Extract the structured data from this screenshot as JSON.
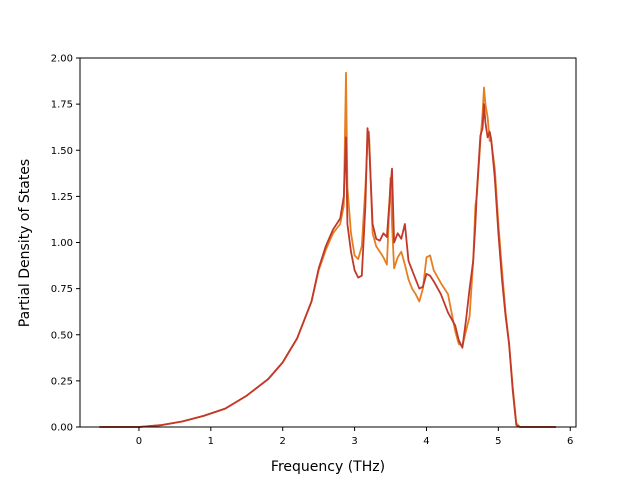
{
  "chart_data": {
    "type": "line",
    "title": "",
    "xlabel": "Frequency (THz)",
    "ylabel": "Partial Density of States",
    "xlim": [
      -0.82,
      6.08
    ],
    "ylim": [
      0.0,
      2.0
    ],
    "xticks": [
      0,
      1,
      2,
      3,
      4,
      5,
      6
    ],
    "yticks": [
      0.0,
      0.25,
      0.5,
      0.75,
      1.0,
      1.25,
      1.5,
      1.75,
      2.0
    ],
    "xtick_labels": [
      "0",
      "1",
      "2",
      "3",
      "4",
      "5",
      "6"
    ],
    "ytick_labels": [
      "0.00",
      "0.25",
      "0.50",
      "0.75",
      "1.00",
      "1.25",
      "1.50",
      "1.75",
      "2.00"
    ],
    "grid": false,
    "series": [
      {
        "color": "#e67e22",
        "x": [
          -0.55,
          0.0,
          0.3,
          0.6,
          0.9,
          1.2,
          1.5,
          1.8,
          2.0,
          2.2,
          2.4,
          2.5,
          2.6,
          2.7,
          2.8,
          2.85,
          2.88,
          2.9,
          2.95,
          3.0,
          3.05,
          3.1,
          3.15,
          3.18,
          3.2,
          3.25,
          3.3,
          3.35,
          3.4,
          3.45,
          3.5,
          3.52,
          3.55,
          3.6,
          3.65,
          3.7,
          3.75,
          3.8,
          3.85,
          3.9,
          3.95,
          4.0,
          4.05,
          4.1,
          4.2,
          4.3,
          4.4,
          4.45,
          4.5,
          4.55,
          4.6,
          4.65,
          4.68,
          4.7,
          4.75,
          4.78,
          4.8,
          4.82,
          4.85,
          4.88,
          4.9,
          4.95,
          5.0,
          5.05,
          5.1,
          5.15,
          5.2,
          5.25,
          5.3,
          5.35,
          5.8
        ],
        "y": [
          0.0,
          0.0,
          0.01,
          0.03,
          0.06,
          0.1,
          0.17,
          0.26,
          0.35,
          0.48,
          0.68,
          0.85,
          0.96,
          1.05,
          1.1,
          1.2,
          1.92,
          1.3,
          1.05,
          0.93,
          0.91,
          0.98,
          1.3,
          1.55,
          1.6,
          1.05,
          0.98,
          0.95,
          0.92,
          0.88,
          1.35,
          1.1,
          0.86,
          0.92,
          0.95,
          0.88,
          0.8,
          0.75,
          0.72,
          0.68,
          0.75,
          0.92,
          0.93,
          0.85,
          0.78,
          0.72,
          0.52,
          0.45,
          0.44,
          0.52,
          0.6,
          0.9,
          1.2,
          1.25,
          1.55,
          1.7,
          1.84,
          1.75,
          1.68,
          1.55,
          1.55,
          1.4,
          1.1,
          0.85,
          0.62,
          0.45,
          0.22,
          0.02,
          0.0,
          0.0,
          0.0
        ]
      },
      {
        "color": "#c0392b",
        "x": [
          -0.55,
          0.0,
          0.3,
          0.6,
          0.9,
          1.2,
          1.5,
          1.8,
          2.0,
          2.2,
          2.4,
          2.5,
          2.6,
          2.7,
          2.8,
          2.85,
          2.88,
          2.9,
          2.95,
          3.0,
          3.05,
          3.1,
          3.15,
          3.18,
          3.2,
          3.25,
          3.3,
          3.35,
          3.4,
          3.45,
          3.5,
          3.52,
          3.55,
          3.6,
          3.65,
          3.7,
          3.75,
          3.8,
          3.85,
          3.9,
          3.95,
          4.0,
          4.05,
          4.1,
          4.2,
          4.3,
          4.4,
          4.45,
          4.5,
          4.55,
          4.6,
          4.65,
          4.68,
          4.7,
          4.75,
          4.78,
          4.8,
          4.82,
          4.85,
          4.88,
          4.9,
          4.95,
          5.0,
          5.05,
          5.1,
          5.15,
          5.2,
          5.25,
          5.3,
          5.35,
          5.8
        ],
        "y": [
          0.0,
          0.0,
          0.01,
          0.03,
          0.06,
          0.1,
          0.17,
          0.26,
          0.35,
          0.48,
          0.68,
          0.86,
          0.98,
          1.07,
          1.13,
          1.25,
          1.57,
          1.1,
          0.95,
          0.85,
          0.81,
          0.82,
          1.2,
          1.62,
          1.55,
          1.1,
          1.02,
          1.01,
          1.05,
          1.03,
          1.3,
          1.4,
          1.0,
          1.05,
          1.02,
          1.1,
          0.9,
          0.85,
          0.8,
          0.75,
          0.76,
          0.83,
          0.82,
          0.79,
          0.72,
          0.62,
          0.55,
          0.47,
          0.43,
          0.58,
          0.75,
          0.9,
          1.1,
          1.27,
          1.58,
          1.62,
          1.75,
          1.65,
          1.57,
          1.6,
          1.56,
          1.35,
          1.05,
          0.8,
          0.6,
          0.45,
          0.2,
          0.01,
          0.0,
          0.0,
          0.0
        ]
      }
    ]
  }
}
